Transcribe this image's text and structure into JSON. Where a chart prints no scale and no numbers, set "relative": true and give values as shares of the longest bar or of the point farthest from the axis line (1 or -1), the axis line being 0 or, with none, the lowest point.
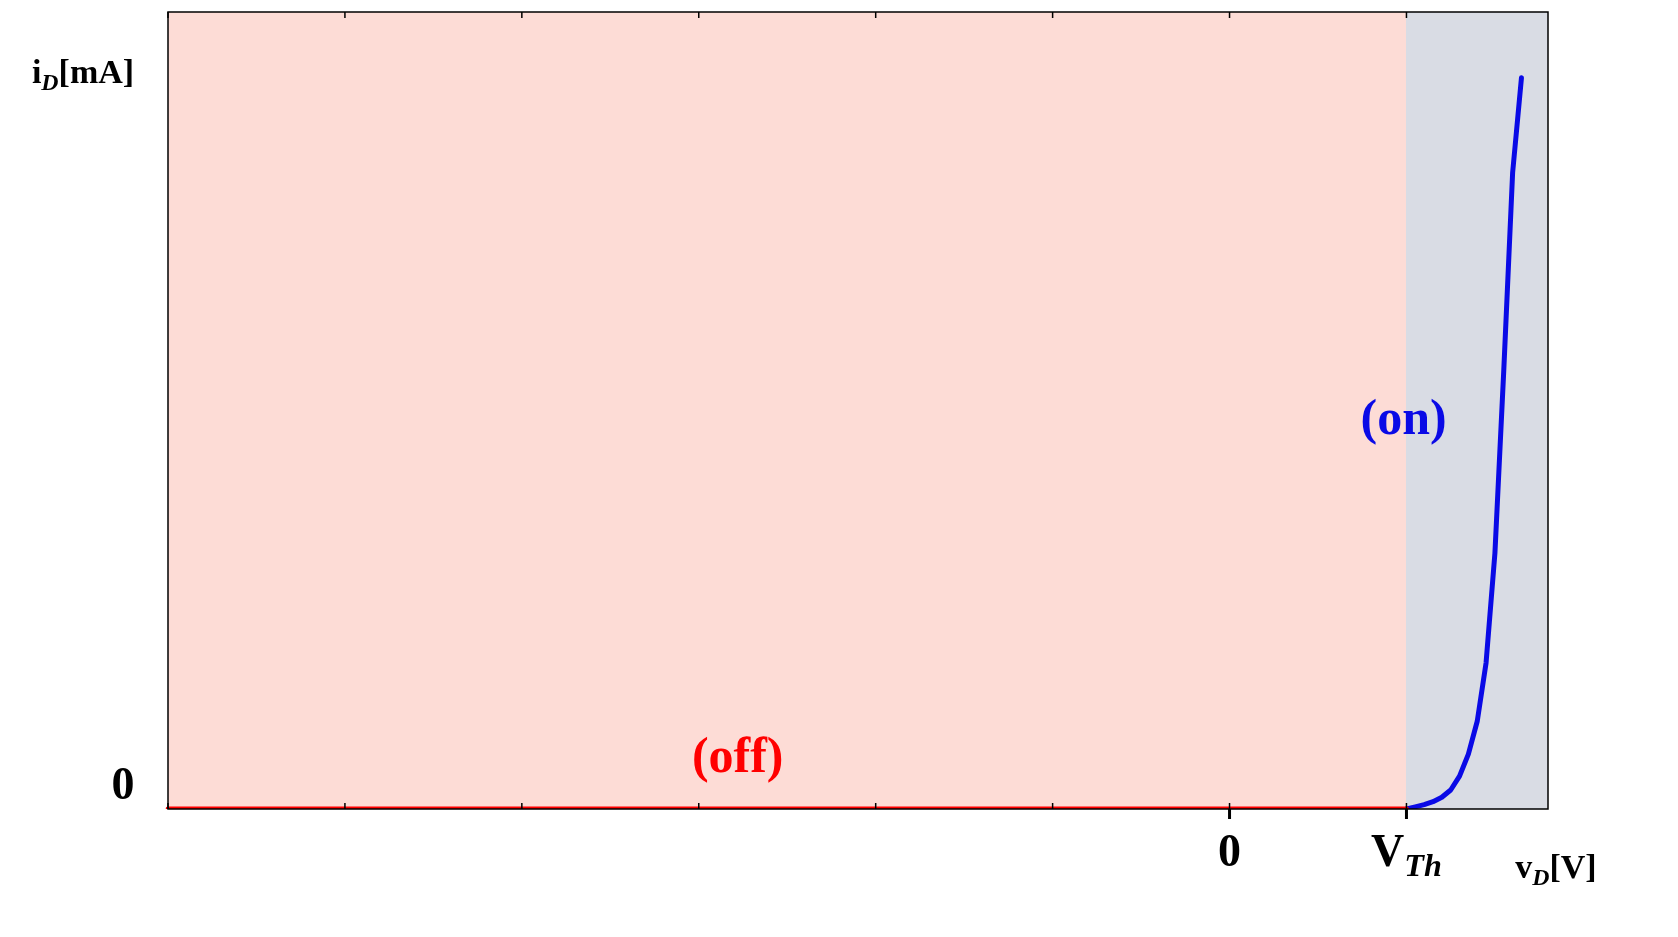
{
  "chart_data": {
    "type": "line",
    "relative": true,
    "xlabel": "v$_{D}$[V]",
    "ylabel": "i$_{D}$[mA]",
    "categories": [
      null,
      null,
      null,
      null,
      null,
      null,
      null,
      null,
      null,
      null,
      null,
      null,
      null,
      null,
      null,
      null,
      null,
      null,
      null,
      null,
      null,
      null,
      null,
      null,
      null,
      null,
      null,
      null,
      null,
      null,
      null,
      null,
      null,
      null,
      null,
      null,
      null,
      null,
      null,
      null,
      null,
      null,
      null,
      null,
      null,
      null,
      null,
      null,
      null,
      null,
      null,
      null,
      null,
      null,
      null,
      null,
      null,
      null,
      null,
      null,
      null,
      null,
      null,
      null,
      null,
      null,
      null,
      null,
      null,
      null,
      null,
      null,
      null,
      null,
      null,
      null,
      null,
      null,
      null,
      null,
      null,
      null,
      null,
      null,
      null,
      null,
      null,
      null,
      null,
      null,
      null,
      null,
      null,
      null,
      null,
      null,
      null,
      null,
      null,
      null,
      null,
      null,
      null,
      null,
      null,
      null,
      null,
      null,
      null,
      null,
      null,
      null,
      null,
      null,
      null,
      null,
      null,
      null,
      null,
      null,
      "0",
      null,
      null,
      null,
      null,
      null,
      null,
      null,
      null,
      null,
      null,
      null,
      null,
      null,
      null,
      null,
      null,
      null,
      null,
      null,
      "V$_{Th}$",
      null,
      null,
      null,
      null,
      null,
      null,
      null,
      null,
      null,
      null,
      null,
      null,
      null,
      null,
      null,
      null
    ],
    "series": [
      {
        "color": "#ff0000",
        "values": [
          0,
          0,
          0,
          0,
          0,
          0,
          0,
          0,
          0,
          0,
          0,
          0,
          0,
          0,
          0,
          0,
          0,
          0,
          0,
          0,
          0,
          0,
          0,
          0,
          0,
          0,
          0,
          0,
          0,
          0,
          0,
          0,
          0,
          0,
          0,
          0,
          0,
          0,
          0,
          0,
          0,
          0,
          0,
          0,
          0,
          0,
          0,
          0,
          0,
          0,
          0,
          0,
          0,
          0,
          0,
          0,
          0,
          0,
          0,
          0,
          0,
          0,
          0,
          0,
          0,
          0,
          0,
          0,
          0,
          0,
          0,
          0,
          0,
          0,
          0,
          0,
          0,
          0,
          0,
          0,
          0,
          0,
          0,
          0,
          0,
          0,
          0,
          0,
          0,
          0,
          0,
          0,
          0,
          0,
          0,
          0,
          0,
          0,
          0,
          0,
          0,
          0,
          0,
          0,
          0,
          0,
          0,
          0,
          0,
          0,
          0,
          0,
          0,
          0,
          0,
          0,
          0,
          0,
          0,
          0,
          0,
          0,
          0,
          0,
          0,
          0,
          0,
          0,
          0,
          0,
          0,
          0,
          0,
          0,
          0,
          0,
          0,
          0,
          0,
          0,
          0,
          null,
          null,
          null,
          null,
          null,
          null,
          null,
          null,
          null,
          null,
          null,
          null,
          null,
          null,
          null,
          null
        ]
      },
      {
        "color": "#0a0ae6",
        "values": [
          null,
          null,
          null,
          null,
          null,
          null,
          null,
          null,
          null,
          null,
          null,
          null,
          null,
          null,
          null,
          null,
          null,
          null,
          null,
          null,
          null,
          null,
          null,
          null,
          null,
          null,
          null,
          null,
          null,
          null,
          null,
          null,
          null,
          null,
          null,
          null,
          null,
          null,
          null,
          null,
          null,
          null,
          null,
          null,
          null,
          null,
          null,
          null,
          null,
          null,
          null,
          null,
          null,
          null,
          null,
          null,
          null,
          null,
          null,
          null,
          null,
          null,
          null,
          null,
          null,
          null,
          null,
          null,
          null,
          null,
          null,
          null,
          null,
          null,
          null,
          null,
          null,
          null,
          null,
          null,
          null,
          null,
          null,
          null,
          null,
          null,
          null,
          null,
          null,
          null,
          null,
          null,
          null,
          null,
          null,
          null,
          null,
          null,
          null,
          null,
          null,
          null,
          null,
          null,
          null,
          null,
          null,
          null,
          null,
          null,
          null,
          null,
          null,
          null,
          null,
          null,
          null,
          null,
          null,
          null,
          null,
          null,
          null,
          null,
          null,
          null,
          null,
          null,
          null,
          null,
          null,
          null,
          null,
          null,
          null,
          null,
          null,
          null,
          null,
          null,
          0,
          0.003,
          0.006,
          0.01,
          0.016,
          0.026,
          0.045,
          0.075,
          0.12,
          0.2,
          0.35,
          0.6,
          0.87,
          1,
          null,
          null,
          null
        ]
      }
    ],
    "annotations": [
      "(off)",
      "(on)",
      "0"
    ],
    "grid": false,
    "legend": false,
    "marker": "none",
    "line_style": "solid"
  }
}
